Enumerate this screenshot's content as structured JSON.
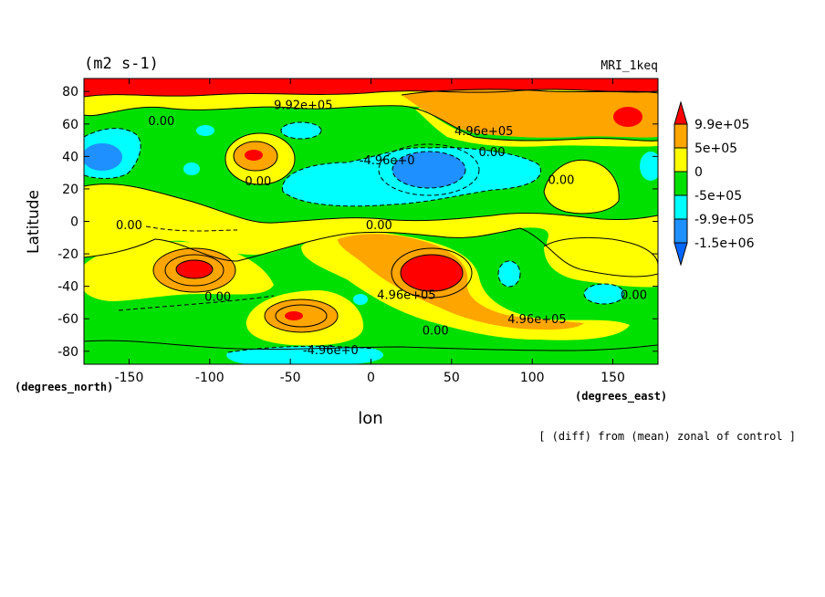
{
  "chart_data": {
    "type": "contour",
    "title": "(m2 s-1)",
    "model_label": "MRI_1keq",
    "xlabel": "lon",
    "ylabel": "Latitude",
    "x_units": "(degrees_east)",
    "y_units": "(degrees_north)",
    "subtitle": "[ (diff) from (mean) zonal of control ]",
    "xlim": [
      -178,
      178
    ],
    "ylim": [
      -88,
      88
    ],
    "x_ticks": [
      -150,
      -100,
      -50,
      0,
      50,
      100,
      150
    ],
    "y_ticks": [
      -80,
      -60,
      -40,
      -20,
      0,
      20,
      40,
      60,
      80
    ],
    "colorbar": {
      "levels": [
        "9.9e+05",
        "5e+05",
        "0",
        "-5e+05",
        "-9.9e+05",
        "-1.5e+06"
      ],
      "colors": [
        "#ff0000",
        "#ffa500",
        "#ffff00",
        "#00e000",
        "#00ffff",
        "#1e90ff",
        "#0066ff"
      ]
    },
    "contour_labels": [
      {
        "text": "9.92e+05",
        "lon": -42,
        "lat": 72
      },
      {
        "text": "0.00",
        "lon": -130,
        "lat": 62
      },
      {
        "text": "4.96e+05",
        "lon": 70,
        "lat": 56
      },
      {
        "text": "0.00",
        "lon": 75,
        "lat": 43
      },
      {
        "text": "-4.96e+0",
        "lon": 10,
        "lat": 38
      },
      {
        "text": "0.00",
        "lon": -70,
        "lat": 25
      },
      {
        "text": "0.00",
        "lon": 118,
        "lat": 26
      },
      {
        "text": "0.00",
        "lon": -150,
        "lat": -2
      },
      {
        "text": "0.00",
        "lon": 5,
        "lat": -2
      },
      {
        "text": "4.96e+05",
        "lon": 22,
        "lat": -45
      },
      {
        "text": "0.00",
        "lon": -95,
        "lat": -46
      },
      {
        "text": "0.00",
        "lon": 163,
        "lat": -45
      },
      {
        "text": "4.96e+05",
        "lon": 103,
        "lat": -60
      },
      {
        "text": "0.00",
        "lon": 40,
        "lat": -67
      },
      {
        "text": "-4.96e+0",
        "lon": -25,
        "lat": -79
      }
    ]
  }
}
